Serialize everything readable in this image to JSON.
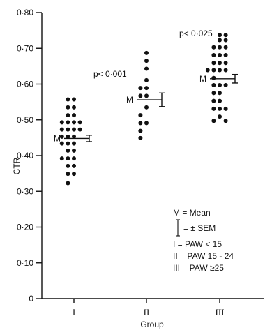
{
  "chart_data": {
    "type": "scatter",
    "title": "",
    "xlabel": "Group",
    "ylabel": "CTR",
    "ylim": [
      0,
      0.8
    ],
    "yticks": [
      0,
      0.1,
      0.2,
      0.3,
      0.4,
      0.5,
      0.6,
      0.7,
      0.8
    ],
    "ytick_labels": [
      "0",
      "0·10",
      "0·20",
      "0·30",
      "0·40",
      "0·50",
      "0·60",
      "0·70",
      "0·80"
    ],
    "categories": [
      "I",
      "II",
      "III"
    ],
    "groups": [
      {
        "category": "I",
        "mean": 0.448,
        "sem": 0.009,
        "mean_label": "M",
        "points": [
          {
            "offset": -1,
            "y": 0.557
          },
          {
            "offset": 0,
            "y": 0.557
          },
          {
            "offset": -1,
            "y": 0.535
          },
          {
            "offset": 0,
            "y": 0.535
          },
          {
            "offset": -1,
            "y": 0.513
          },
          {
            "offset": 0,
            "y": 0.513
          },
          {
            "offset": -2,
            "y": 0.493
          },
          {
            "offset": -1,
            "y": 0.493
          },
          {
            "offset": 0,
            "y": 0.493
          },
          {
            "offset": 1,
            "y": 0.493
          },
          {
            "offset": -2,
            "y": 0.473
          },
          {
            "offset": -1,
            "y": 0.473
          },
          {
            "offset": 0,
            "y": 0.473
          },
          {
            "offset": 1,
            "y": 0.473
          },
          {
            "offset": -2,
            "y": 0.453
          },
          {
            "offset": -1,
            "y": 0.453
          },
          {
            "offset": 0,
            "y": 0.453
          },
          {
            "offset": -2,
            "y": 0.434
          },
          {
            "offset": -1,
            "y": 0.434
          },
          {
            "offset": 0,
            "y": 0.434
          },
          {
            "offset": -1,
            "y": 0.414
          },
          {
            "offset": 0,
            "y": 0.414
          },
          {
            "offset": -2,
            "y": 0.392
          },
          {
            "offset": -1,
            "y": 0.392
          },
          {
            "offset": 0,
            "y": 0.392
          },
          {
            "offset": -1,
            "y": 0.371
          },
          {
            "offset": 0,
            "y": 0.371
          },
          {
            "offset": -1,
            "y": 0.349
          },
          {
            "offset": 0,
            "y": 0.349
          },
          {
            "offset": -1,
            "y": 0.323
          }
        ]
      },
      {
        "category": "II",
        "mean": 0.556,
        "sem": 0.019,
        "mean_label": "M",
        "points": [
          {
            "offset": 0,
            "y": 0.687
          },
          {
            "offset": 0,
            "y": 0.665
          },
          {
            "offset": 0,
            "y": 0.643
          },
          {
            "offset": 0,
            "y": 0.611
          },
          {
            "offset": -1,
            "y": 0.589
          },
          {
            "offset": 0,
            "y": 0.589
          },
          {
            "offset": -1,
            "y": 0.567
          },
          {
            "offset": 0,
            "y": 0.567
          },
          {
            "offset": 0,
            "y": 0.535
          },
          {
            "offset": -1,
            "y": 0.513
          },
          {
            "offset": -1,
            "y": 0.491
          },
          {
            "offset": 0,
            "y": 0.491
          },
          {
            "offset": -1,
            "y": 0.469
          },
          {
            "offset": -1,
            "y": 0.449
          }
        ]
      },
      {
        "category": "III",
        "mean": 0.615,
        "sem": 0.012,
        "mean_label": "M",
        "points": [
          {
            "offset": 0,
            "y": 0.737
          },
          {
            "offset": 1,
            "y": 0.737
          },
          {
            "offset": 0,
            "y": 0.723
          },
          {
            "offset": 1,
            "y": 0.723
          },
          {
            "offset": -1,
            "y": 0.703
          },
          {
            "offset": 0,
            "y": 0.703
          },
          {
            "offset": 1,
            "y": 0.703
          },
          {
            "offset": -1,
            "y": 0.681
          },
          {
            "offset": 0,
            "y": 0.681
          },
          {
            "offset": 1,
            "y": 0.681
          },
          {
            "offset": -1,
            "y": 0.659
          },
          {
            "offset": 0,
            "y": 0.659
          },
          {
            "offset": 1,
            "y": 0.659
          },
          {
            "offset": -2,
            "y": 0.639
          },
          {
            "offset": -1,
            "y": 0.639
          },
          {
            "offset": 0,
            "y": 0.639
          },
          {
            "offset": 1,
            "y": 0.639
          },
          {
            "offset": -1,
            "y": 0.617
          },
          {
            "offset": -1,
            "y": 0.597
          },
          {
            "offset": 0,
            "y": 0.597
          },
          {
            "offset": 1,
            "y": 0.597
          },
          {
            "offset": -1,
            "y": 0.575
          },
          {
            "offset": 0,
            "y": 0.575
          },
          {
            "offset": -1,
            "y": 0.553
          },
          {
            "offset": 0,
            "y": 0.553
          },
          {
            "offset": -1,
            "y": 0.531
          },
          {
            "offset": 0,
            "y": 0.531
          },
          {
            "offset": 1,
            "y": 0.531
          },
          {
            "offset": 0,
            "y": 0.509
          },
          {
            "offset": -1,
            "y": 0.497
          },
          {
            "offset": 1,
            "y": 0.497
          }
        ]
      }
    ],
    "annotations": [
      {
        "text": "p< 0·001",
        "between": [
          "I",
          "II"
        ]
      },
      {
        "text": "p< 0·025",
        "between": [
          "II",
          "III"
        ]
      }
    ],
    "legend": {
      "placement": "bottom-right",
      "mean_line": "M = Mean",
      "sem_line": "= ± SEM",
      "group_lines": [
        "I = PAW < 15",
        "II = PAW 15 - 24",
        "III = PAW ≥25"
      ]
    },
    "grid": false
  }
}
